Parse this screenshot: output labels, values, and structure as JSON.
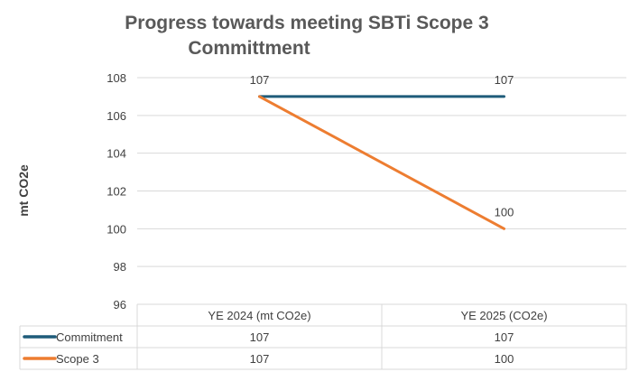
{
  "chart_data": {
    "type": "line",
    "title_line1": "Progress towards meeting SBTi Scope 3",
    "title_line2": "Committment",
    "ylabel": "mt CO2e",
    "xlabel": "",
    "categories": [
      "YE 2024 (mt CO2e)",
      "YE 2025 (CO2e)"
    ],
    "ylim": [
      96,
      108
    ],
    "yticks": [
      96,
      98,
      100,
      102,
      104,
      106,
      108
    ],
    "grid": true,
    "legend": "data table below plot",
    "series": [
      {
        "name": "Commitment",
        "values": [
          107,
          107
        ],
        "color": "#1f5c7a"
      },
      {
        "name": "Scope 3",
        "values": [
          107,
          100
        ],
        "color": "#ed7d31"
      }
    ]
  }
}
